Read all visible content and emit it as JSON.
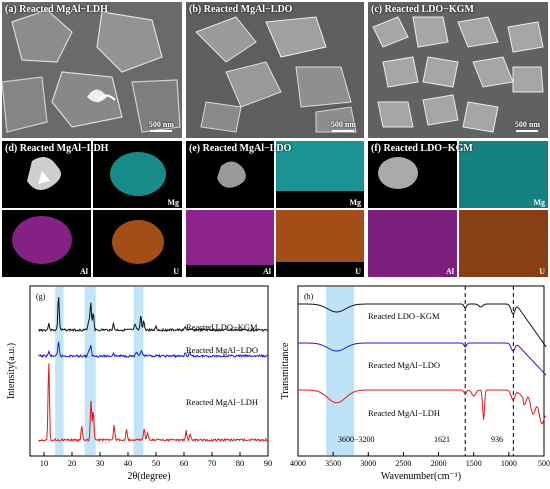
{
  "sem_panels": [
    {
      "label": "(a) Reacted MgAl−LDH",
      "scale": "500 nm"
    },
    {
      "label": "(b) Reacted MgAl−LDO",
      "scale": "500 nm"
    },
    {
      "label": "(c) Reacted LDO−KGM",
      "scale": "500 nm"
    }
  ],
  "eds_panels": [
    {
      "label": "(d) Reacted MgAl−LDH",
      "maps": [
        "Mg",
        "Al",
        "U"
      ]
    },
    {
      "label": "(e) Reacted MgAl−LDO",
      "maps": [
        "Mg",
        "Al",
        "U"
      ]
    },
    {
      "label": "(f) Reacted LDO−KGM",
      "maps": [
        "Mg",
        "Al",
        "U"
      ]
    }
  ],
  "map_colors": {
    "Mg": "#1fb8b8",
    "Al": "#b02cb0",
    "U": "#c05a1c"
  },
  "chart_data": [
    {
      "type": "line",
      "panel_label": "(g)",
      "xlabel": "2θ(degree)",
      "ylabel": "Intensity(a.u.)",
      "xlim": [
        5,
        90
      ],
      "xticks": [
        10,
        20,
        30,
        40,
        50,
        60,
        70,
        80,
        90
      ],
      "highlight_bands": [
        [
          14,
          17
        ],
        [
          24.5,
          28.5
        ],
        [
          42,
          45.5
        ]
      ],
      "series": [
        {
          "name": "Reacted LDO−KGM",
          "color": "#111111"
        },
        {
          "name": "Reacted MgAl−LDO",
          "color": "#1a1ae0"
        },
        {
          "name": "Reacted MgAl−LDH",
          "color": "#e01a1a"
        }
      ]
    },
    {
      "type": "line",
      "panel_label": "(h)",
      "xlabel": "Wavenumber(cm⁻¹)",
      "ylabel": "Transmittance",
      "xlim": [
        4000,
        500
      ],
      "xticks": [
        4000,
        3500,
        3000,
        2500,
        2000,
        1500,
        1000,
        500
      ],
      "highlight_band": [
        3600,
        3200
      ],
      "vlines": [
        1621,
        936
      ],
      "annotations": [
        "3600−3200",
        "1621",
        "936"
      ],
      "series": [
        {
          "name": "Reacted LDO−KGM",
          "color": "#111111"
        },
        {
          "name": "Reacted MgAl−LDO",
          "color": "#1a1ae0"
        },
        {
          "name": "Reacted MgAl−LDH",
          "color": "#e01a1a"
        }
      ]
    }
  ]
}
